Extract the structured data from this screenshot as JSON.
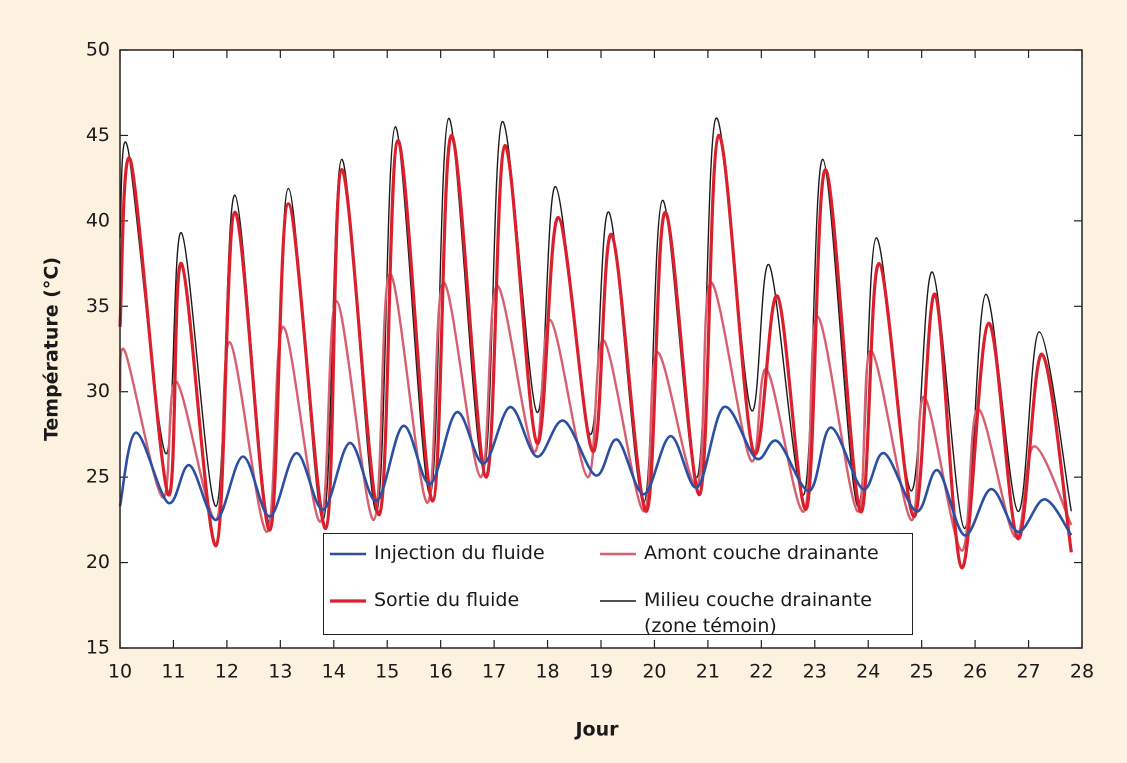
{
  "chart_data": {
    "type": "line",
    "xlabel": "Jour",
    "ylabel": "Température (°C)",
    "xlim": [
      10,
      28
    ],
    "xticks": [
      10,
      11,
      12,
      13,
      14,
      15,
      16,
      17,
      18,
      19,
      20,
      21,
      22,
      23,
      24,
      25,
      26,
      27,
      28
    ],
    "ylim": [
      15,
      50
    ],
    "yticks": [
      15,
      20,
      25,
      30,
      35,
      40,
      45,
      50
    ],
    "grid": false,
    "legend": "bottom-center",
    "series": [
      {
        "name": "Injection du fluide",
        "color": "#2b4fa3",
        "x": [
          10.0,
          10.3,
          10.9,
          11.3,
          11.8,
          12.3,
          12.8,
          13.3,
          13.8,
          14.3,
          14.8,
          15.3,
          15.8,
          16.3,
          16.8,
          17.3,
          17.8,
          18.3,
          18.9,
          19.3,
          19.8,
          20.3,
          20.8,
          21.3,
          21.9,
          22.3,
          22.9,
          23.3,
          23.9,
          24.3,
          24.9,
          25.3,
          25.8,
          26.3,
          26.8,
          27.3,
          27.8
        ],
        "values": [
          23.3,
          27.6,
          23.5,
          25.7,
          22.5,
          26.2,
          22.7,
          26.4,
          23.1,
          27.0,
          23.6,
          28.0,
          24.6,
          28.8,
          25.8,
          29.1,
          26.2,
          28.3,
          25.1,
          27.2,
          24.0,
          27.4,
          24.4,
          29.1,
          26.1,
          27.1,
          24.2,
          27.9,
          24.3,
          26.4,
          23.0,
          25.4,
          21.6,
          24.3,
          21.8,
          23.7,
          21.6
        ]
      },
      {
        "name": "Amont couche drainante",
        "color": "#d65f70",
        "x": [
          10.0,
          10.1,
          10.8,
          11.05,
          11.8,
          12.05,
          12.75,
          13.05,
          13.75,
          14.05,
          14.75,
          15.05,
          15.75,
          16.05,
          16.75,
          17.05,
          17.75,
          18.05,
          18.75,
          19.05,
          19.8,
          20.05,
          20.8,
          21.05,
          21.8,
          22.1,
          22.8,
          23.05,
          23.8,
          24.05,
          24.8,
          25.05,
          25.75,
          26.05,
          26.75,
          27.1,
          27.8
        ],
        "values": [
          30.0,
          32.3,
          23.8,
          30.6,
          22.5,
          32.9,
          21.8,
          33.8,
          22.4,
          35.3,
          22.5,
          36.9,
          23.5,
          36.4,
          25.0,
          36.2,
          26.5,
          34.2,
          25.0,
          33.0,
          23.0,
          32.3,
          24.5,
          36.4,
          26.0,
          31.3,
          23.0,
          34.4,
          23.0,
          32.4,
          22.5,
          29.7,
          20.7,
          29.0,
          21.5,
          26.8,
          22.2
        ]
      },
      {
        "name": "Sortie du fluide",
        "color": "#d9202c",
        "x": [
          10.0,
          10.2,
          10.9,
          11.15,
          11.8,
          12.15,
          12.8,
          13.15,
          13.85,
          14.15,
          14.85,
          15.2,
          15.85,
          16.2,
          16.85,
          17.2,
          17.8,
          18.2,
          18.85,
          19.2,
          19.85,
          20.2,
          20.85,
          21.2,
          21.85,
          22.3,
          22.85,
          23.2,
          23.85,
          24.2,
          24.85,
          25.25,
          25.75,
          26.25,
          26.8,
          27.25,
          27.8
        ],
        "values": [
          33.8,
          43.5,
          24.0,
          37.5,
          21.0,
          40.5,
          21.9,
          41.0,
          22.0,
          43.0,
          22.8,
          44.7,
          23.6,
          45.0,
          25.0,
          44.4,
          27.0,
          40.2,
          26.5,
          39.2,
          23.0,
          40.5,
          24.0,
          45.0,
          26.5,
          35.6,
          23.2,
          43.0,
          23.0,
          37.5,
          22.7,
          35.7,
          19.7,
          34.0,
          21.4,
          32.2,
          20.6
        ]
      },
      {
        "name": "Milieu couche drainante\n(zone témoin)",
        "color": "#1a1a1a",
        "x": [
          10.0,
          10.15,
          10.85,
          11.15,
          11.8,
          12.15,
          12.8,
          13.15,
          13.8,
          14.15,
          14.8,
          15.15,
          15.8,
          16.15,
          16.8,
          17.15,
          17.8,
          18.15,
          18.8,
          19.15,
          19.8,
          20.15,
          20.8,
          21.15,
          21.8,
          22.15,
          22.8,
          23.15,
          23.8,
          24.15,
          24.8,
          25.2,
          25.8,
          26.2,
          26.8,
          27.2,
          27.8
        ],
        "values": [
          39.0,
          44.2,
          26.4,
          39.3,
          23.3,
          41.5,
          22.3,
          41.9,
          22.5,
          43.6,
          23.0,
          45.5,
          24.0,
          46.0,
          25.5,
          45.8,
          28.8,
          42.0,
          27.5,
          40.5,
          23.5,
          41.2,
          25.0,
          46.0,
          29.0,
          37.4,
          24.0,
          43.6,
          23.3,
          39.0,
          24.2,
          37.0,
          22.0,
          35.7,
          23.0,
          33.5,
          23.0
        ]
      }
    ]
  }
}
